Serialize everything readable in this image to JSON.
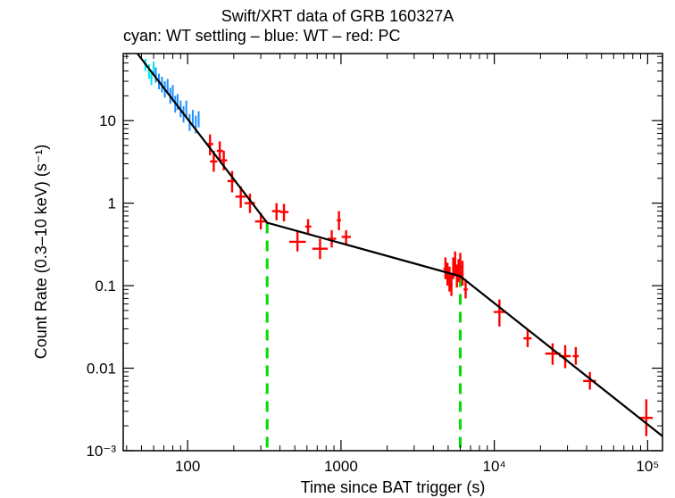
{
  "chart_data": {
    "type": "scatter",
    "title": "Swift/XRT data of GRB 160327A",
    "subtitle": "cyan: WT settling – blue: WT – red: PC",
    "xlabel": "Time since BAT trigger (s)",
    "ylabel": "Count Rate (0.3–10 keV) (s⁻¹)",
    "xscale": "log",
    "yscale": "log",
    "xlim": [
      38,
      125000
    ],
    "ylim": [
      0.001,
      65
    ],
    "x_ticks": [
      {
        "value": 100,
        "label": "100"
      },
      {
        "value": 1000,
        "label": "1000"
      },
      {
        "value": 10000,
        "label": "10⁴"
      },
      {
        "value": 100000,
        "label": "10⁵"
      }
    ],
    "y_ticks": [
      {
        "value": 0.001,
        "label": "10⁻³"
      },
      {
        "value": 0.01,
        "label": "0.01"
      },
      {
        "value": 0.1,
        "label": "0.1"
      },
      {
        "value": 1,
        "label": "1"
      },
      {
        "value": 10,
        "label": "10"
      }
    ],
    "series": [
      {
        "mode": "WT settling",
        "color": "#00e5ee",
        "points": [
          {
            "x": 53,
            "y": 48,
            "xlo": 52,
            "xhi": 54,
            "ylo": 40,
            "yhi": 56
          },
          {
            "x": 56,
            "y": 40,
            "xlo": 55,
            "xhi": 57,
            "ylo": 32,
            "yhi": 48
          },
          {
            "x": 58,
            "y": 33,
            "xlo": 57,
            "xhi": 59,
            "ylo": 27,
            "yhi": 40
          },
          {
            "x": 60,
            "y": 44,
            "xlo": 59,
            "xhi": 61,
            "ylo": 36,
            "yhi": 52
          }
        ]
      },
      {
        "mode": "WT",
        "color": "#1e90ff",
        "points": [
          {
            "x": 62,
            "y": 36,
            "xlo": 61,
            "xhi": 63,
            "ylo": 29,
            "yhi": 44
          },
          {
            "x": 65,
            "y": 30,
            "xlo": 64,
            "xhi": 66,
            "ylo": 24,
            "yhi": 37
          },
          {
            "x": 68,
            "y": 28,
            "xlo": 67,
            "xhi": 69,
            "ylo": 22,
            "yhi": 34
          },
          {
            "x": 71,
            "y": 24,
            "xlo": 70,
            "xhi": 72,
            "ylo": 19,
            "yhi": 30
          },
          {
            "x": 74,
            "y": 26,
            "xlo": 73,
            "xhi": 75,
            "ylo": 21,
            "yhi": 32
          },
          {
            "x": 77,
            "y": 20,
            "xlo": 76,
            "xhi": 78,
            "ylo": 16,
            "yhi": 25
          },
          {
            "x": 80,
            "y": 22,
            "xlo": 79,
            "xhi": 81,
            "ylo": 17,
            "yhi": 27
          },
          {
            "x": 83,
            "y": 16,
            "xlo": 82,
            "xhi": 84,
            "ylo": 12.5,
            "yhi": 20
          },
          {
            "x": 86,
            "y": 17,
            "xlo": 85,
            "xhi": 87,
            "ylo": 13.5,
            "yhi": 21
          },
          {
            "x": 90,
            "y": 14,
            "xlo": 89,
            "xhi": 91,
            "ylo": 11,
            "yhi": 17.5
          },
          {
            "x": 94,
            "y": 12,
            "xlo": 93,
            "xhi": 95,
            "ylo": 9.5,
            "yhi": 15
          },
          {
            "x": 98,
            "y": 14,
            "xlo": 97,
            "xhi": 99,
            "ylo": 11,
            "yhi": 17.5
          },
          {
            "x": 103,
            "y": 9.5,
            "xlo": 102,
            "xhi": 104,
            "ylo": 7.5,
            "yhi": 12
          },
          {
            "x": 108,
            "y": 11,
            "xlo": 107,
            "xhi": 109,
            "ylo": 8.5,
            "yhi": 13.5
          },
          {
            "x": 113,
            "y": 9,
            "xlo": 112,
            "xhi": 114,
            "ylo": 7,
            "yhi": 11.5
          },
          {
            "x": 118,
            "y": 10.5,
            "xlo": 117,
            "xhi": 119,
            "ylo": 8.3,
            "yhi": 13
          }
        ]
      },
      {
        "mode": "PC",
        "color": "#ff0000",
        "points": [
          {
            "x": 140,
            "y": 5.2,
            "xlo": 133,
            "xhi": 147,
            "ylo": 3.8,
            "yhi": 6.8
          },
          {
            "x": 148,
            "y": 3.2,
            "xlo": 140,
            "xhi": 156,
            "ylo": 2.4,
            "yhi": 4.3
          },
          {
            "x": 162,
            "y": 4.3,
            "xlo": 155,
            "xhi": 170,
            "ylo": 3.2,
            "yhi": 5.6
          },
          {
            "x": 172,
            "y": 3.3,
            "xlo": 164,
            "xhi": 181,
            "ylo": 2.5,
            "yhi": 4.3
          },
          {
            "x": 195,
            "y": 1.85,
            "xlo": 182,
            "xhi": 208,
            "ylo": 1.35,
            "yhi": 2.45
          },
          {
            "x": 222,
            "y": 1.2,
            "xlo": 205,
            "xhi": 240,
            "ylo": 0.88,
            "yhi": 1.6
          },
          {
            "x": 255,
            "y": 1.0,
            "xlo": 235,
            "xhi": 275,
            "ylo": 0.76,
            "yhi": 1.3
          },
          {
            "x": 300,
            "y": 0.6,
            "xlo": 275,
            "xhi": 330,
            "ylo": 0.48,
            "yhi": 0.76
          },
          {
            "x": 380,
            "y": 0.8,
            "xlo": 355,
            "xhi": 405,
            "ylo": 0.62,
            "yhi": 1.0
          },
          {
            "x": 425,
            "y": 0.78,
            "xlo": 400,
            "xhi": 455,
            "ylo": 0.6,
            "yhi": 0.98
          },
          {
            "x": 520,
            "y": 0.34,
            "xlo": 460,
            "xhi": 590,
            "ylo": 0.26,
            "yhi": 0.45
          },
          {
            "x": 610,
            "y": 0.52,
            "xlo": 585,
            "xhi": 640,
            "ylo": 0.42,
            "yhi": 0.64
          },
          {
            "x": 730,
            "y": 0.28,
            "xlo": 650,
            "xhi": 820,
            "ylo": 0.21,
            "yhi": 0.37
          },
          {
            "x": 870,
            "y": 0.37,
            "xlo": 820,
            "xhi": 930,
            "ylo": 0.29,
            "yhi": 0.47
          },
          {
            "x": 970,
            "y": 0.62,
            "xlo": 940,
            "xhi": 1000,
            "ylo": 0.47,
            "yhi": 0.8
          },
          {
            "x": 1080,
            "y": 0.39,
            "xlo": 1010,
            "xhi": 1160,
            "ylo": 0.32,
            "yhi": 0.47
          },
          {
            "x": 4800,
            "y": 0.16,
            "xlo": 4650,
            "xhi": 4950,
            "ylo": 0.12,
            "yhi": 0.22
          },
          {
            "x": 4950,
            "y": 0.14,
            "xlo": 4850,
            "xhi": 5050,
            "ylo": 0.1,
            "yhi": 0.19
          },
          {
            "x": 5100,
            "y": 0.12,
            "xlo": 5000,
            "xhi": 5200,
            "ylo": 0.085,
            "yhi": 0.17
          },
          {
            "x": 5250,
            "y": 0.1,
            "xlo": 5150,
            "xhi": 5350,
            "ylo": 0.075,
            "yhi": 0.14
          },
          {
            "x": 5400,
            "y": 0.16,
            "xlo": 5300,
            "xhi": 5500,
            "ylo": 0.12,
            "yhi": 0.22
          },
          {
            "x": 5550,
            "y": 0.18,
            "xlo": 5450,
            "xhi": 5650,
            "ylo": 0.13,
            "yhi": 0.26
          },
          {
            "x": 5700,
            "y": 0.13,
            "xlo": 5600,
            "xhi": 5800,
            "ylo": 0.095,
            "yhi": 0.18
          },
          {
            "x": 5850,
            "y": 0.15,
            "xlo": 5750,
            "xhi": 5950,
            "ylo": 0.11,
            "yhi": 0.21
          },
          {
            "x": 6000,
            "y": 0.17,
            "xlo": 5900,
            "xhi": 6100,
            "ylo": 0.12,
            "yhi": 0.25
          },
          {
            "x": 6200,
            "y": 0.14,
            "xlo": 6100,
            "xhi": 6300,
            "ylo": 0.1,
            "yhi": 0.2
          },
          {
            "x": 6500,
            "y": 0.09,
            "xlo": 6300,
            "xhi": 6700,
            "ylo": 0.07,
            "yhi": 0.12
          },
          {
            "x": 10800,
            "y": 0.048,
            "xlo": 9900,
            "xhi": 11800,
            "ylo": 0.032,
            "yhi": 0.068
          },
          {
            "x": 16500,
            "y": 0.023,
            "xlo": 15500,
            "xhi": 17500,
            "ylo": 0.018,
            "yhi": 0.029
          },
          {
            "x": 24000,
            "y": 0.015,
            "xlo": 21500,
            "xhi": 27000,
            "ylo": 0.011,
            "yhi": 0.02
          },
          {
            "x": 29000,
            "y": 0.014,
            "xlo": 26500,
            "xhi": 31500,
            "ylo": 0.01,
            "yhi": 0.019
          },
          {
            "x": 34000,
            "y": 0.014,
            "xlo": 32500,
            "xhi": 35500,
            "ylo": 0.011,
            "yhi": 0.018
          },
          {
            "x": 42000,
            "y": 0.007,
            "xlo": 38000,
            "xhi": 46000,
            "ylo": 0.0055,
            "yhi": 0.009
          },
          {
            "x": 98000,
            "y": 0.0025,
            "xlo": 88000,
            "xhi": 108000,
            "ylo": 0.0015,
            "yhi": 0.0042
          }
        ]
      }
    ],
    "model_line": {
      "color": "#000000",
      "points": [
        [
          47,
          65
        ],
        [
          330,
          0.58
        ],
        [
          6000,
          0.13
        ],
        [
          125000,
          0.0015
        ]
      ]
    },
    "break_lines": {
      "color": "#00dd00",
      "style": "dashed",
      "x": [
        330,
        6000
      ]
    }
  }
}
